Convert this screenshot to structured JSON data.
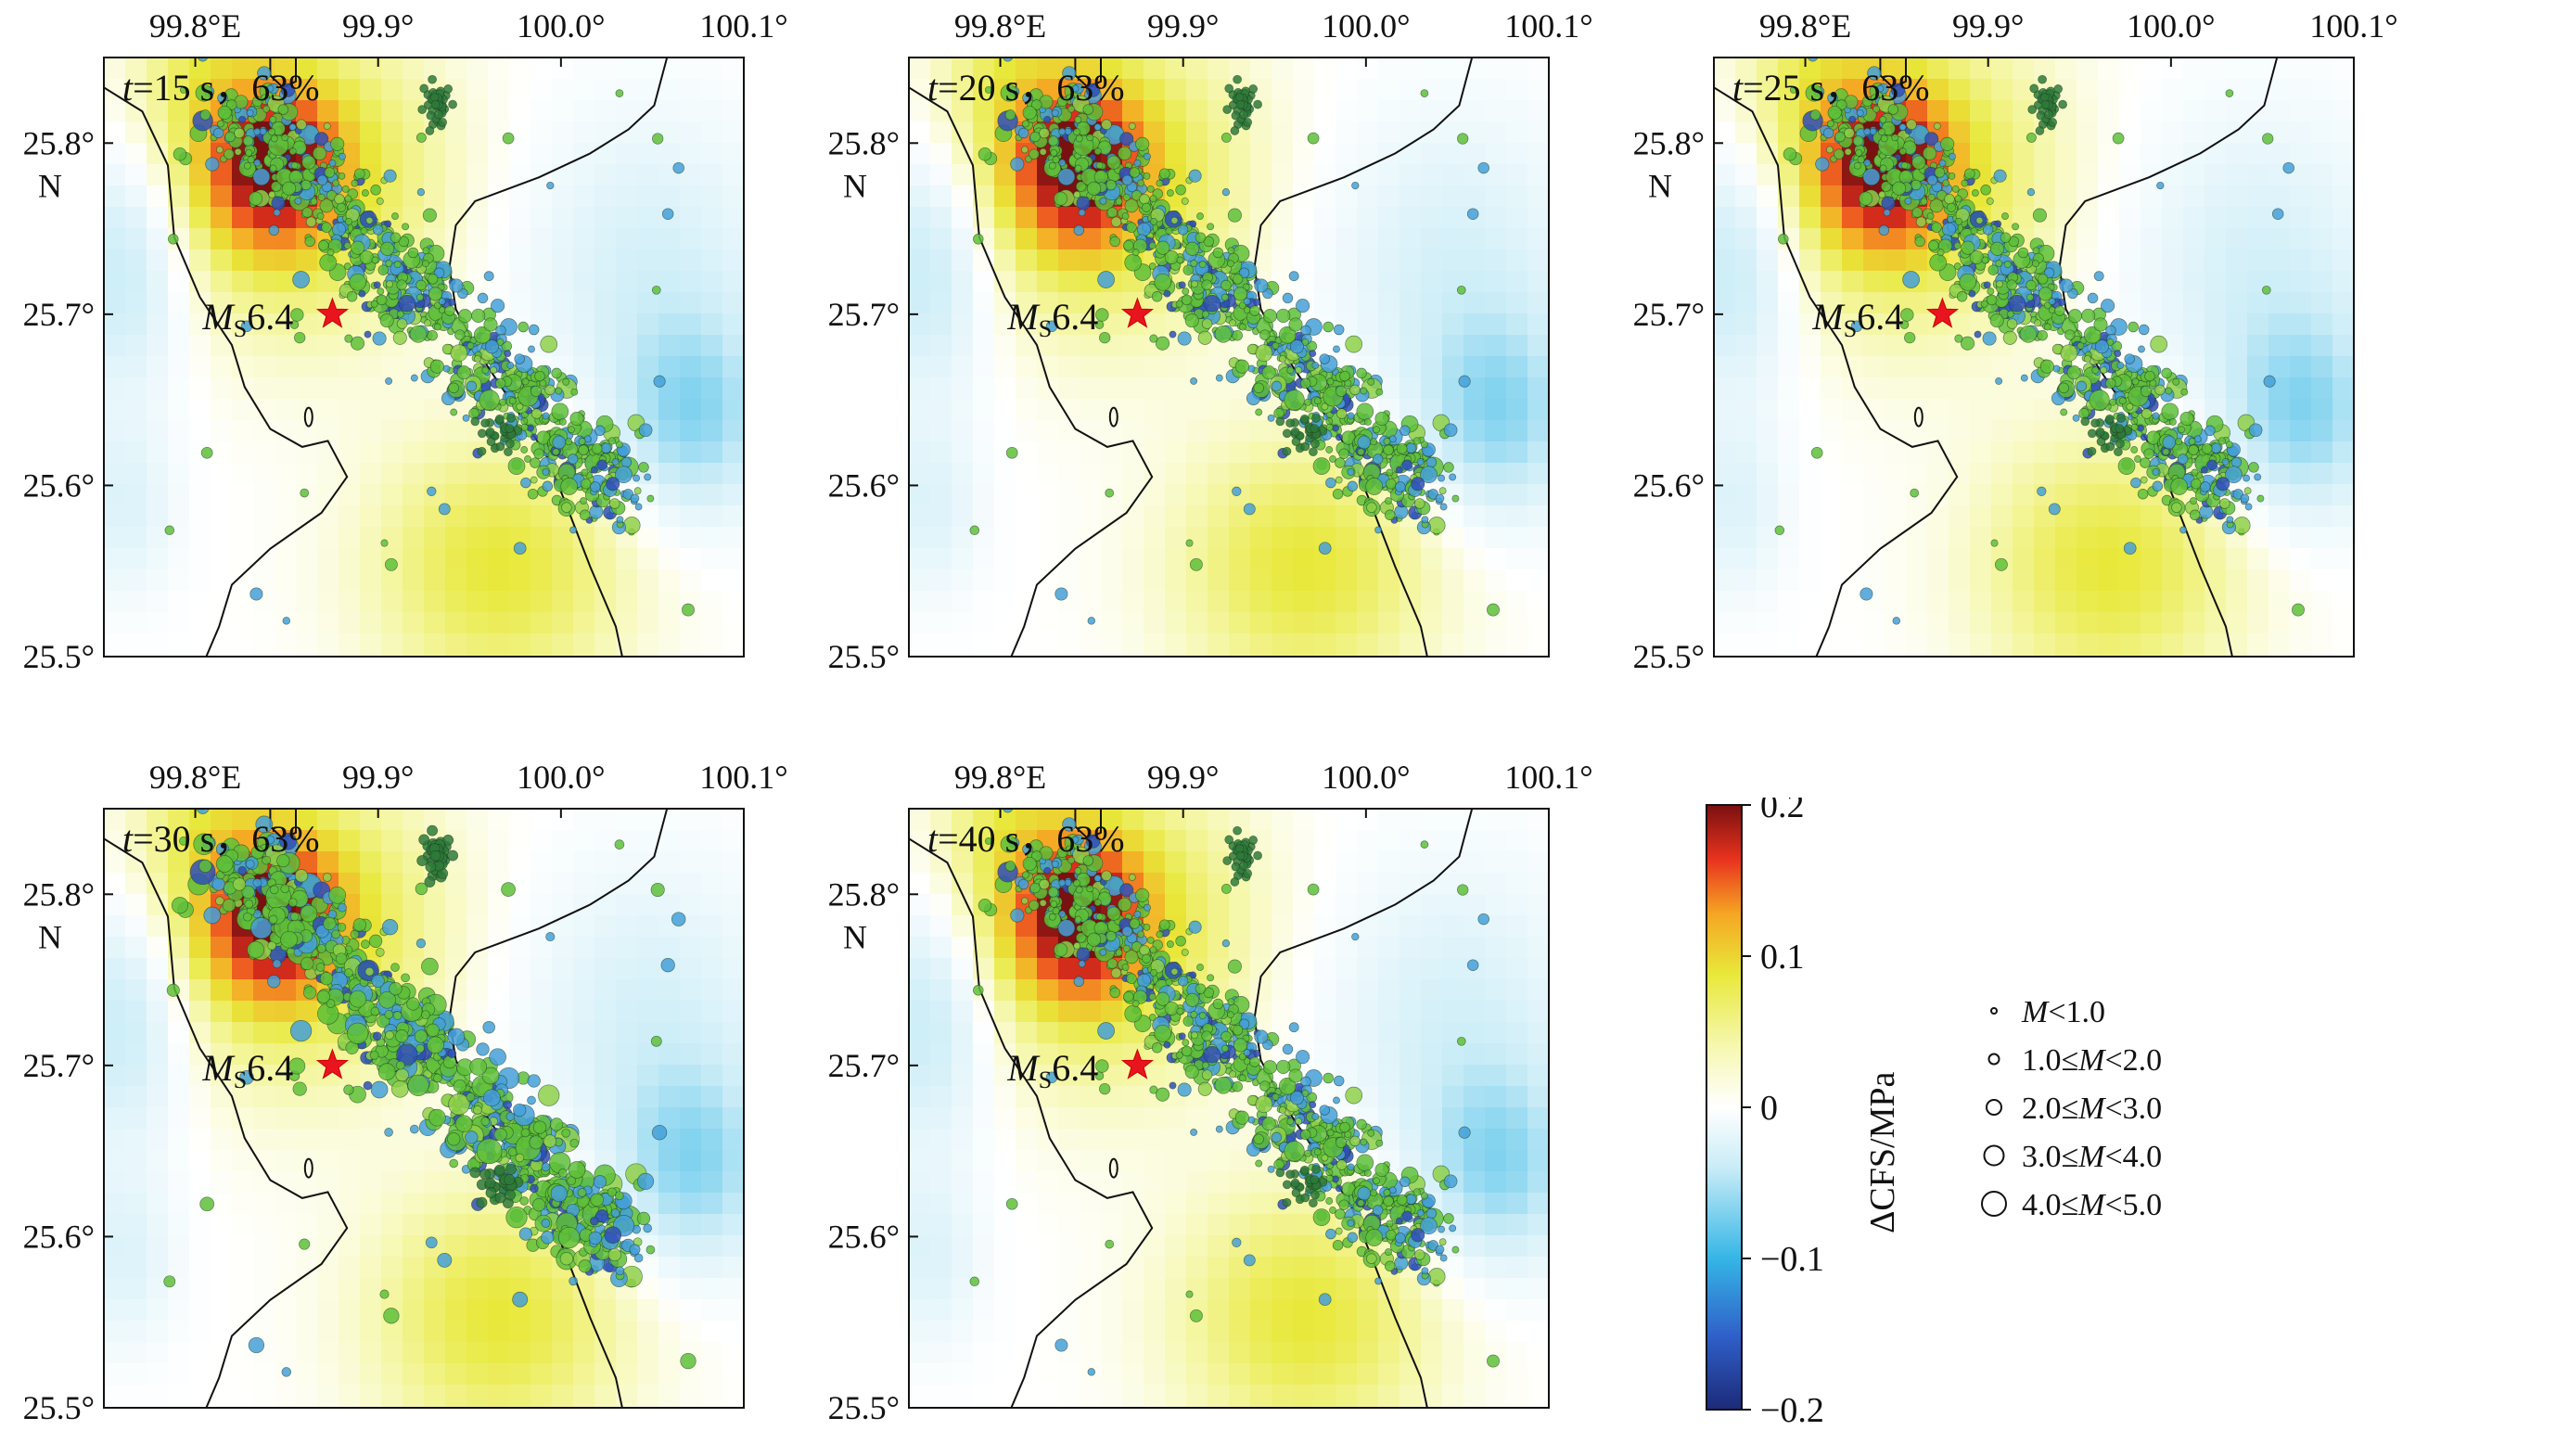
{
  "map": {
    "lon_ticks": [
      "99.8°E",
      "99.9°",
      "100.0°",
      "100.1°"
    ],
    "lat_ticks": [
      "25.8°",
      "25.7°",
      "25.6°",
      "25.5°"
    ],
    "lat_N": "N",
    "lon_range": [
      99.75,
      100.1
    ],
    "lat_range": [
      25.5,
      25.85
    ],
    "epicenter_label_main": "M",
    "epicenter_label_sub": "S",
    "epicenter_label_mag": "6.4",
    "epicenter": {
      "lon": 99.875,
      "lat": 25.7
    }
  },
  "panels": [
    {
      "t_var": "t",
      "t_value": "=15 s",
      "pct": "，63%"
    },
    {
      "t_var": "t",
      "t_value": "=20 s",
      "pct": "，63%"
    },
    {
      "t_var": "t",
      "t_value": "=25 s",
      "pct": "，63%"
    },
    {
      "t_var": "t",
      "t_value": "=30 s",
      "pct": "，63%"
    },
    {
      "t_var": "t",
      "t_value": "=40 s",
      "pct": "，63%"
    }
  ],
  "colorbar": {
    "title": "ΔCFS/MPa",
    "ticks": [
      "0.2",
      "0.1",
      "0",
      "−0.1",
      "−0.2"
    ],
    "range": [
      -0.2,
      0.2
    ],
    "colors": [
      "#1c2a78",
      "#2f6fd0",
      "#35b6e6",
      "#dff3fa",
      "#ffffff",
      "#f6f8c0",
      "#e8e83a",
      "#f5a623",
      "#e8331e",
      "#7a1010"
    ]
  },
  "legend": {
    "items": [
      {
        "var": "M",
        "pre": "",
        "post": "<1.0"
      },
      {
        "var": "M",
        "pre": "1.0≤",
        "post": "<2.0"
      },
      {
        "var": "M",
        "pre": "2.0≤",
        "post": "<3.0"
      },
      {
        "var": "M",
        "pre": "3.0≤",
        "post": "<4.0"
      },
      {
        "var": "M",
        "pre": "4.0≤",
        "post": "<5.0"
      }
    ]
  }
}
